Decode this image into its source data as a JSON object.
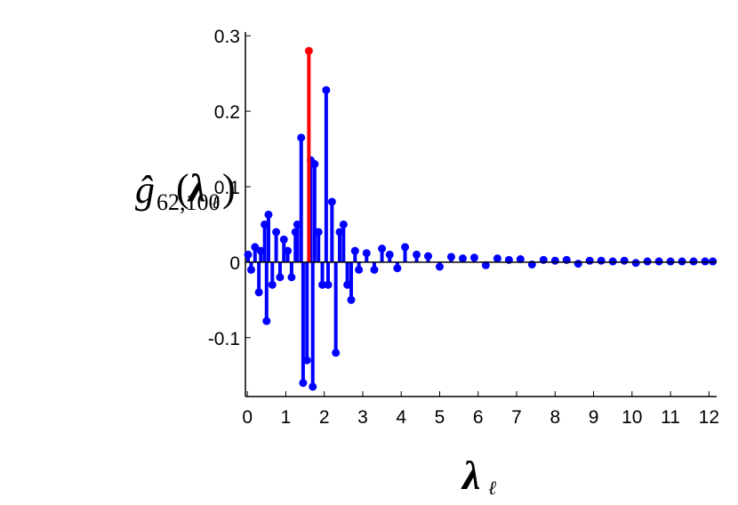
{
  "chart_data": {
    "type": "stem",
    "ylabel": {
      "base": "ĝ",
      "sub": "62,100",
      "open": "(",
      "arg": "λ",
      "argsub": "ℓ",
      "close": ")"
    },
    "xlabel": {
      "base": "λ",
      "sub": "ℓ"
    },
    "xlim": [
      -0.05,
      12.2
    ],
    "ylim": [
      -0.178,
      0.305
    ],
    "xticks": [
      0,
      1,
      2,
      3,
      4,
      5,
      6,
      7,
      8,
      9,
      10,
      11,
      12
    ],
    "yticks": [
      -0.1,
      0,
      0.1,
      0.2,
      0.3
    ],
    "baseline": true,
    "series": [
      {
        "color": "#0000ff",
        "x": [
          0.02,
          0.1,
          0.2,
          0.3,
          0.35,
          0.45,
          0.5,
          0.55,
          0.65,
          0.75,
          0.85,
          0.95,
          1.05,
          1.15,
          1.25,
          1.3,
          1.4,
          1.45,
          1.55,
          1.65,
          1.7,
          1.75,
          1.85,
          1.95,
          2.05,
          2.1,
          2.2,
          2.3,
          2.4,
          2.5,
          2.6,
          2.7,
          2.8,
          2.9,
          3.1,
          3.3,
          3.5,
          3.7,
          3.9,
          4.1,
          4.4,
          4.7,
          5.0,
          5.3,
          5.6,
          5.9,
          6.2,
          6.5,
          6.8,
          7.1,
          7.4,
          7.7,
          8.0,
          8.3,
          8.6,
          8.9,
          9.2,
          9.5,
          9.8,
          10.1,
          10.4,
          10.7,
          11.0,
          11.3,
          11.6,
          11.9,
          12.1
        ],
        "values": [
          0.01,
          -0.01,
          0.02,
          -0.04,
          0.015,
          0.05,
          -0.078,
          0.063,
          -0.03,
          0.04,
          -0.02,
          0.03,
          0.015,
          -0.02,
          0.04,
          0.05,
          0.165,
          -0.16,
          -0.13,
          0.135,
          -0.165,
          0.13,
          0.04,
          -0.03,
          0.228,
          -0.03,
          0.08,
          -0.12,
          0.04,
          0.05,
          -0.03,
          -0.05,
          0.015,
          -0.01,
          0.012,
          -0.01,
          0.018,
          0.01,
          -0.008,
          0.02,
          0.01,
          0.008,
          -0.006,
          0.007,
          0.005,
          0.006,
          -0.004,
          0.005,
          0.003,
          0.004,
          -0.003,
          0.003,
          0.002,
          0.003,
          -0.002,
          0.002,
          0.002,
          0.001,
          0.002,
          -0.001,
          0.001,
          0.001,
          0.001,
          0.001,
          0.001,
          0.001,
          0.001
        ]
      },
      {
        "color": "#ff0000",
        "x": [
          1.6
        ],
        "values": [
          0.28
        ]
      }
    ]
  }
}
